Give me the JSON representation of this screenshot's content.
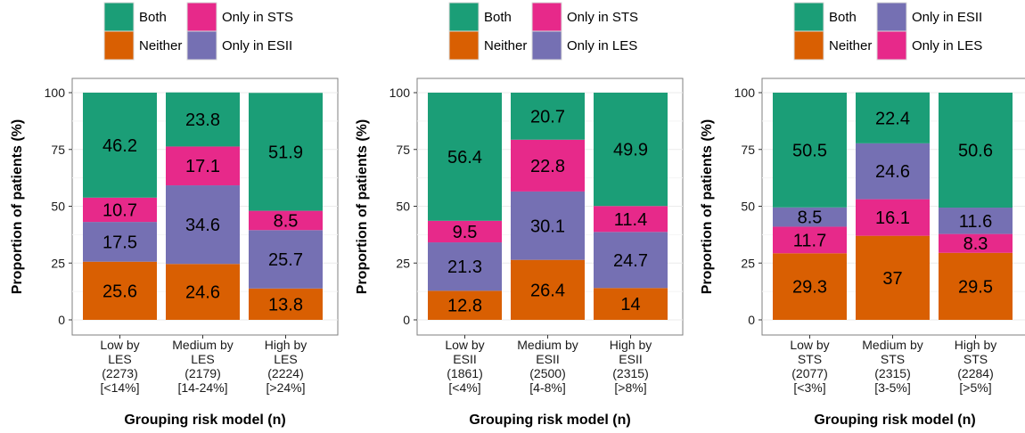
{
  "chart_data": [
    {
      "type": "bar",
      "stacked": true,
      "ylabel": "Proportion of patients (%)",
      "xlabel": "Grouping risk model (n)",
      "ylim": [
        0,
        100
      ],
      "yticks": [
        0,
        25,
        50,
        75,
        100
      ],
      "grid": true,
      "legend_position": "top",
      "legend": [
        "Both",
        "Only in STS",
        "Neither",
        "Only in ESII"
      ],
      "categories": [
        [
          "Low by",
          "LES",
          "(2273)",
          "[<14%]"
        ],
        [
          "Medium by",
          "LES",
          "(2179)",
          "[14-24%]"
        ],
        [
          "High by",
          "LES",
          "(2224)",
          "[>24%]"
        ]
      ],
      "series": [
        {
          "name": "Neither",
          "color": "#D95F02",
          "values": [
            25.6,
            24.6,
            13.8
          ],
          "labels": [
            "25.6",
            "24.6",
            "13.8"
          ]
        },
        {
          "name": "Only in ESII",
          "color": "#7570B3",
          "values": [
            17.5,
            34.6,
            25.7
          ],
          "labels": [
            "17.5",
            "34.6",
            "25.7"
          ]
        },
        {
          "name": "Only in STS",
          "color": "#E7298A",
          "values": [
            10.7,
            17.1,
            8.5
          ],
          "labels": [
            "10.7",
            "17.1",
            "8.5"
          ]
        },
        {
          "name": "Both",
          "color": "#1B9E77",
          "values": [
            46.2,
            23.8,
            51.9
          ],
          "labels": [
            "46.2",
            "23.8",
            "51.9"
          ]
        }
      ]
    },
    {
      "type": "bar",
      "stacked": true,
      "ylabel": "Proportion of patients (%)",
      "xlabel": "Grouping risk model (n)",
      "ylim": [
        0,
        100
      ],
      "yticks": [
        0,
        25,
        50,
        75,
        100
      ],
      "grid": true,
      "legend_position": "top",
      "legend": [
        "Both",
        "Only in STS",
        "Neither",
        "Only in LES"
      ],
      "categories": [
        [
          "Low by",
          "ESII",
          "(1861)",
          "[<4%]"
        ],
        [
          "Medium by",
          "ESII",
          "(2500)",
          "[4-8%]"
        ],
        [
          "High by",
          "ESII",
          "(2315)",
          "[>8%]"
        ]
      ],
      "series": [
        {
          "name": "Neither",
          "color": "#D95F02",
          "values": [
            12.8,
            26.4,
            14
          ],
          "labels": [
            "12.8",
            "26.4",
            "14"
          ]
        },
        {
          "name": "Only in LES",
          "color": "#7570B3",
          "values": [
            21.3,
            30.1,
            24.7
          ],
          "labels": [
            "21.3",
            "30.1",
            "24.7"
          ]
        },
        {
          "name": "Only in STS",
          "color": "#E7298A",
          "values": [
            9.5,
            22.8,
            11.4
          ],
          "labels": [
            "9.5",
            "22.8",
            "11.4"
          ]
        },
        {
          "name": "Both",
          "color": "#1B9E77",
          "values": [
            56.4,
            20.7,
            49.9
          ],
          "labels": [
            "56.4",
            "20.7",
            "49.9"
          ]
        }
      ]
    },
    {
      "type": "bar",
      "stacked": true,
      "ylabel": "Proportion of patients (%)",
      "xlabel": "Grouping risk model (n)",
      "ylim": [
        0,
        100
      ],
      "yticks": [
        0,
        25,
        50,
        75,
        100
      ],
      "grid": true,
      "legend_position": "top",
      "legend": [
        "Both",
        "Only in ESII",
        "Neither",
        "Only in LES"
      ],
      "categories": [
        [
          "Low by",
          "STS",
          "(2077)",
          "[<3%]"
        ],
        [
          "Medium by",
          "STS",
          "(2315)",
          "[3-5%]"
        ],
        [
          "High by",
          "STS",
          "(2284)",
          "[>5%]"
        ]
      ],
      "series": [
        {
          "name": "Neither",
          "color": "#D95F02",
          "values": [
            29.3,
            37,
            29.5
          ],
          "labels": [
            "29.3",
            "37",
            "29.5"
          ]
        },
        {
          "name": "Only in LES",
          "color": "#E7298A",
          "values": [
            11.7,
            16.1,
            8.3
          ],
          "labels": [
            "11.7",
            "16.1",
            "8.3"
          ]
        },
        {
          "name": "Only in ESII",
          "color": "#7570B3",
          "values": [
            8.5,
            24.6,
            11.6
          ],
          "labels": [
            "8.5",
            "24.6",
            "11.6"
          ]
        },
        {
          "name": "Both",
          "color": "#1B9E77",
          "values": [
            50.5,
            22.4,
            50.6
          ],
          "labels": [
            "50.5",
            "22.4",
            "50.6"
          ]
        }
      ]
    }
  ]
}
